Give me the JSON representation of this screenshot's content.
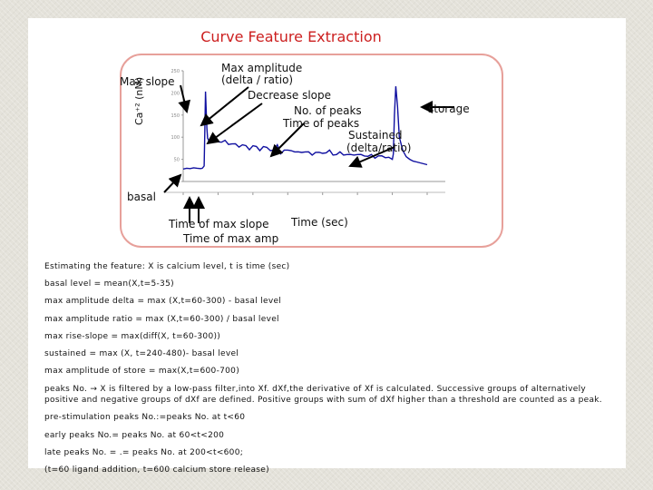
{
  "slide": {
    "title": "Curve Feature Extraction",
    "annotations": {
      "max_slope": "Max slope",
      "max_amplitude": "Max amplitude",
      "max_amplitude_sub": "(delta / ratio)",
      "decrease_slope": "Decrease slope",
      "no_of_peaks": "No. of peaks",
      "time_of_peaks": "Time of peaks",
      "sustained": "Sustained",
      "sustained_sub": "(delta/ratio)",
      "storage": "storage",
      "basal": "basal",
      "time_of_max_slope": "Time of max slope",
      "time_of_max_amp": "Time of max amp",
      "time_axis": "Time (sec)",
      "y_axis": "Ca⁺² (nM)"
    },
    "formulas": [
      "Estimating the feature: X is calcium level, t is time (sec)",
      "basal level = mean(X,t=5-35)",
      "max amplitude delta = max (X,t=60-300) - basal level",
      "max amplitude ratio = max (X,t=60-300) / basal level",
      "max rise-slope = max(diff(X, t=60-300))",
      "sustained = max (X, t=240-480)- basal level",
      "max amplitude of store = max(X,t=600-700)",
      "peaks No. → X is filtered by a low-pass filter,into Xf. dXf,the derivative of Xf is calculated. Successive groups of alternatively positive and negative groups of dXf are defined. Positive groups with sum of dXf higher than a threshold are counted as a peak.",
      "pre-stimulation peaks No.:=peaks No. at t<60",
      "early peaks No.= peaks No. at 60<t<200",
      "late peaks No. = .= peaks No. at 200<t<600;",
      "(t=60 ligand addition, t=600 calcium store release)"
    ]
  },
  "chart_data": {
    "type": "line",
    "title": "",
    "xlabel": "Time (sec)",
    "ylabel": "Ca⁺² (nM)",
    "y_ticks": [
      "250",
      "200",
      "150",
      "100",
      "50",
      "0"
    ],
    "ylim": [
      0,
      250
    ],
    "xlim": [
      0,
      700
    ],
    "series": [
      {
        "x": [
          0,
          10,
          20,
          30,
          40,
          50,
          55,
          60,
          62,
          64,
          66,
          68,
          70,
          75,
          80,
          90,
          100,
          110,
          120,
          130,
          140,
          150,
          160,
          170,
          180,
          190,
          200,
          210,
          220,
          230,
          240,
          250,
          260,
          270,
          280,
          290,
          300,
          310,
          320,
          330,
          340,
          350,
          360,
          370,
          380,
          390,
          400,
          410,
          420,
          430,
          440,
          450,
          460,
          470,
          480,
          490,
          500,
          510,
          520,
          530,
          540,
          550,
          560,
          570,
          580,
          590,
          600,
          603,
          606,
          610,
          615,
          620,
          630,
          640,
          650,
          660,
          670,
          680,
          690,
          700
        ],
        "y": [
          28,
          30,
          29,
          31,
          30,
          29,
          30,
          35,
          110,
          200,
          160,
          120,
          95,
          92,
          90,
          95,
          92,
          88,
          90,
          86,
          84,
          82,
          80,
          82,
          78,
          74,
          80,
          76,
          72,
          78,
          74,
          72,
          70,
          80,
          65,
          70,
          68,
          72,
          66,
          64,
          68,
          66,
          64,
          62,
          65,
          63,
          66,
          64,
          68,
          62,
          60,
          64,
          62,
          60,
          58,
          62,
          60,
          58,
          60,
          56,
          58,
          55,
          57,
          55,
          56,
          54,
          50,
          62,
          150,
          215,
          170,
          100,
          70,
          56,
          50,
          46,
          44,
          42,
          40,
          38
        ]
      }
    ],
    "colors": {
      "line": "#1010a0",
      "arrow": "#000000",
      "title": "#cc1f1f"
    }
  }
}
